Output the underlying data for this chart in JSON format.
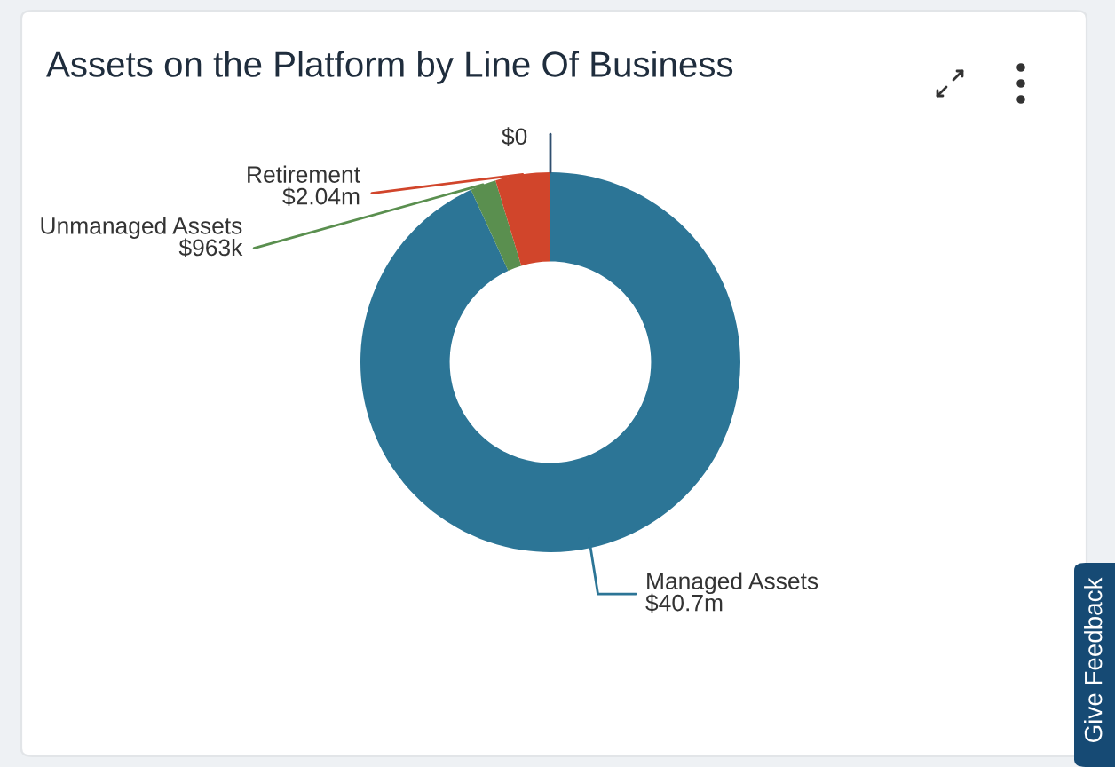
{
  "chart_data": {
    "type": "donut",
    "title": "Assets on the Platform by Line Of Business",
    "categories": [
      "Managed Assets",
      "Unmanaged Assets",
      "Retirement",
      null
    ],
    "values": [
      40700000,
      963000,
      2040000,
      0
    ],
    "value_labels": [
      "$40.7m",
      "$963k",
      "$2.04m",
      "$0"
    ],
    "colors": [
      "#2c7596",
      "#5a8f4f",
      "#d1452b",
      "#2f4f6f"
    ],
    "annotations": [
      "Give Feedback"
    ]
  }
}
